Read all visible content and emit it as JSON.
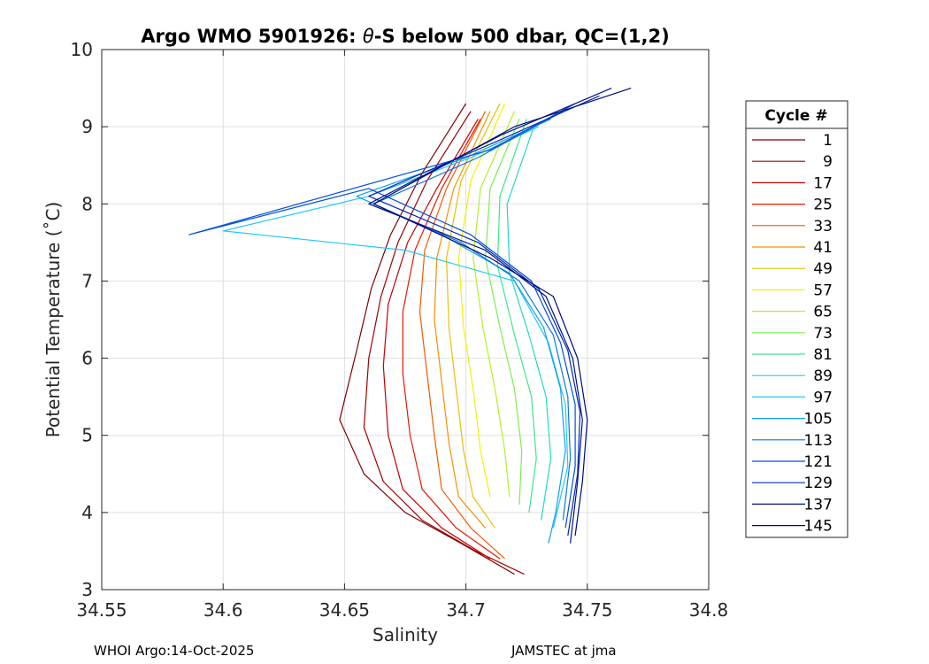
{
  "colors": {
    "background": "#ffffff",
    "axis": "#262626",
    "grid": "#dfdfdf",
    "text": "#000000"
  },
  "chart_data": {
    "type": "line",
    "title_prefix": "Argo WMO 5901926: ",
    "title_symbol": "θ",
    "title_suffix": "-S below 500 dbar,  QC=(1,2)",
    "xlabel": "Salinity",
    "ylabel": "Potential Temperature (˚C)",
    "xlim": [
      34.55,
      34.8
    ],
    "ylim": [
      3,
      10
    ],
    "xticks": [
      34.55,
      34.6,
      34.65,
      34.7,
      34.75,
      34.8
    ],
    "xtick_labels": [
      "34.55",
      "34.6",
      "34.65",
      "34.7",
      "34.75",
      "34.8"
    ],
    "yticks": [
      3,
      4,
      5,
      6,
      7,
      8,
      9,
      10
    ],
    "ytick_labels": [
      "3",
      "4",
      "5",
      "6",
      "7",
      "8",
      "9",
      "10"
    ],
    "grid": true,
    "legend_title": "Cycle #",
    "legend_position": "outside-right",
    "legend": [
      {
        "label": "1",
        "color": "#7f0000"
      },
      {
        "label": "9",
        "color": "#9e0000"
      },
      {
        "label": "17",
        "color": "#c40000"
      },
      {
        "label": "25",
        "color": "#e31a00"
      },
      {
        "label": "33",
        "color": "#f05a00"
      },
      {
        "label": "41",
        "color": "#f59000"
      },
      {
        "label": "49",
        "color": "#e8c000"
      },
      {
        "label": "57",
        "color": "#f2f200"
      },
      {
        "label": "65",
        "color": "#b4f028"
      },
      {
        "label": "73",
        "color": "#78f050"
      },
      {
        "label": "81",
        "color": "#3ce68c"
      },
      {
        "label": "89",
        "color": "#22d9c2"
      },
      {
        "label": "97",
        "color": "#1ec8ff"
      },
      {
        "label": "105",
        "color": "#10a0e6"
      },
      {
        "label": "113",
        "color": "#0a78dc"
      },
      {
        "label": "121",
        "color": "#0050dc"
      },
      {
        "label": "129",
        "color": "#0028b4"
      },
      {
        "label": "137",
        "color": "#00148c"
      },
      {
        "label": "145",
        "color": "#000a78"
      }
    ],
    "series": [
      {
        "name": "1",
        "color": "#7f0000",
        "points": [
          [
            34.7,
            9.3
          ],
          [
            34.682,
            8.4
          ],
          [
            34.669,
            7.6
          ],
          [
            34.661,
            6.9
          ],
          [
            34.655,
            6.1
          ],
          [
            34.648,
            5.2
          ],
          [
            34.658,
            4.5
          ],
          [
            34.675,
            4.0
          ],
          [
            34.698,
            3.6
          ],
          [
            34.72,
            3.2
          ]
        ]
      },
      {
        "name": "9",
        "color": "#9e0000",
        "points": [
          [
            34.702,
            9.2
          ],
          [
            34.684,
            8.3
          ],
          [
            34.672,
            7.5
          ],
          [
            34.665,
            6.8
          ],
          [
            34.66,
            6.0
          ],
          [
            34.658,
            5.1
          ],
          [
            34.666,
            4.4
          ],
          [
            34.682,
            3.9
          ],
          [
            34.704,
            3.5
          ],
          [
            34.724,
            3.2
          ]
        ]
      },
      {
        "name": "17",
        "color": "#c40000",
        "points": [
          [
            34.705,
            9.1
          ],
          [
            34.688,
            8.2
          ],
          [
            34.676,
            7.5
          ],
          [
            34.668,
            6.7
          ],
          [
            34.666,
            5.9
          ],
          [
            34.668,
            5.0
          ],
          [
            34.674,
            4.3
          ],
          [
            34.69,
            3.8
          ],
          [
            34.71,
            3.4
          ]
        ]
      },
      {
        "name": "25",
        "color": "#e31a00",
        "points": [
          [
            34.706,
            9.1
          ],
          [
            34.69,
            8.2
          ],
          [
            34.679,
            7.4
          ],
          [
            34.674,
            6.6
          ],
          [
            34.674,
            5.8
          ],
          [
            34.677,
            5.0
          ],
          [
            34.682,
            4.3
          ],
          [
            34.696,
            3.8
          ],
          [
            34.714,
            3.4
          ]
        ]
      },
      {
        "name": "33",
        "color": "#f05a00",
        "points": [
          [
            34.708,
            9.2
          ],
          [
            34.692,
            8.2
          ],
          [
            34.683,
            7.4
          ],
          [
            34.681,
            6.6
          ],
          [
            34.684,
            5.8
          ],
          [
            34.687,
            5.0
          ],
          [
            34.69,
            4.3
          ],
          [
            34.702,
            3.8
          ],
          [
            34.716,
            3.4
          ]
        ]
      },
      {
        "name": "41",
        "color": "#f59000",
        "points": [
          [
            34.71,
            9.2
          ],
          [
            34.695,
            8.2
          ],
          [
            34.688,
            7.3
          ],
          [
            34.687,
            6.5
          ],
          [
            34.69,
            5.7
          ],
          [
            34.693,
            4.9
          ],
          [
            34.697,
            4.2
          ],
          [
            34.708,
            3.8
          ]
        ]
      },
      {
        "name": "49",
        "color": "#e8c000",
        "points": [
          [
            34.714,
            9.3
          ],
          [
            34.698,
            8.3
          ],
          [
            34.692,
            7.3
          ],
          [
            34.693,
            6.4
          ],
          [
            34.696,
            5.6
          ],
          [
            34.699,
            4.8
          ],
          [
            34.703,
            4.2
          ],
          [
            34.712,
            3.8
          ]
        ]
      },
      {
        "name": "57",
        "color": "#f2f200",
        "points": [
          [
            34.716,
            9.3
          ],
          [
            34.702,
            8.3
          ],
          [
            34.697,
            7.3
          ],
          [
            34.699,
            6.4
          ],
          [
            34.703,
            5.6
          ],
          [
            34.706,
            4.8
          ],
          [
            34.71,
            4.2
          ]
        ]
      },
      {
        "name": "65",
        "color": "#b4f028",
        "points": [
          [
            34.72,
            9.2
          ],
          [
            34.706,
            8.2
          ],
          [
            34.703,
            7.3
          ],
          [
            34.707,
            6.4
          ],
          [
            34.712,
            5.6
          ],
          [
            34.716,
            4.8
          ],
          [
            34.718,
            4.2
          ]
        ]
      },
      {
        "name": "73",
        "color": "#78f050",
        "points": [
          [
            34.722,
            9.1
          ],
          [
            34.71,
            8.2
          ],
          [
            34.708,
            7.3
          ],
          [
            34.714,
            6.4
          ],
          [
            34.72,
            5.6
          ],
          [
            34.723,
            4.8
          ],
          [
            34.722,
            4.1
          ]
        ]
      },
      {
        "name": "81",
        "color": "#3ce68c",
        "points": [
          [
            34.725,
            9.1
          ],
          [
            34.714,
            8.1
          ],
          [
            34.713,
            7.2
          ],
          [
            34.72,
            6.3
          ],
          [
            34.727,
            5.5
          ],
          [
            34.729,
            4.7
          ],
          [
            34.726,
            4.0
          ]
        ]
      },
      {
        "name": "89",
        "color": "#22d9c2",
        "points": [
          [
            34.728,
            9.0
          ],
          [
            34.717,
            8.0
          ],
          [
            34.718,
            7.1
          ],
          [
            34.726,
            6.3
          ],
          [
            34.733,
            5.5
          ],
          [
            34.735,
            4.7
          ],
          [
            34.731,
            3.9
          ]
        ]
      },
      {
        "name": "97",
        "color": "#1ec8ff",
        "points": [
          [
            34.73,
            9.0
          ],
          [
            34.702,
            8.6
          ],
          [
            34.66,
            8.1
          ],
          [
            34.6,
            7.65
          ],
          [
            34.675,
            7.4
          ],
          [
            34.72,
            7.0
          ],
          [
            34.734,
            6.2
          ],
          [
            34.741,
            5.4
          ],
          [
            34.742,
            4.6
          ],
          [
            34.736,
            3.8
          ]
        ]
      },
      {
        "name": "105",
        "color": "#10a0e6",
        "points": [
          [
            34.735,
            9.1
          ],
          [
            34.7,
            8.6
          ],
          [
            34.655,
            8.1
          ],
          [
            34.69,
            7.6
          ],
          [
            34.718,
            7.1
          ],
          [
            34.732,
            6.4
          ],
          [
            34.739,
            5.6
          ],
          [
            34.741,
            4.8
          ],
          [
            34.737,
            4.0
          ],
          [
            34.734,
            3.6
          ]
        ]
      },
      {
        "name": "113",
        "color": "#0a78dc",
        "points": [
          [
            34.74,
            9.2
          ],
          [
            34.705,
            8.6
          ],
          [
            34.662,
            8.0
          ],
          [
            34.698,
            7.5
          ],
          [
            34.722,
            7.0
          ],
          [
            34.736,
            6.3
          ],
          [
            34.742,
            5.5
          ],
          [
            34.743,
            4.7
          ],
          [
            34.74,
            3.9
          ]
        ]
      },
      {
        "name": "121",
        "color": "#0050dc",
        "points": [
          [
            34.745,
            9.3
          ],
          [
            34.71,
            8.7
          ],
          [
            34.586,
            7.6
          ],
          [
            34.66,
            8.2
          ],
          [
            34.702,
            7.6
          ],
          [
            34.727,
            7.0
          ],
          [
            34.739,
            6.2
          ],
          [
            34.745,
            5.4
          ],
          [
            34.745,
            4.6
          ],
          [
            34.741,
            3.8
          ]
        ]
      },
      {
        "name": "129",
        "color": "#0028b4",
        "points": [
          [
            34.755,
            9.4
          ],
          [
            34.712,
            8.8
          ],
          [
            34.66,
            8.1
          ],
          [
            34.705,
            7.5
          ],
          [
            34.73,
            6.9
          ],
          [
            34.742,
            6.1
          ],
          [
            34.747,
            5.3
          ],
          [
            34.746,
            4.5
          ],
          [
            34.742,
            3.7
          ]
        ]
      },
      {
        "name": "137",
        "color": "#00148c",
        "points": [
          [
            34.76,
            9.5
          ],
          [
            34.715,
            8.9
          ],
          [
            34.66,
            8.0
          ],
          [
            34.708,
            7.4
          ],
          [
            34.733,
            6.8
          ],
          [
            34.744,
            6.0
          ],
          [
            34.748,
            5.2
          ],
          [
            34.746,
            4.4
          ],
          [
            34.743,
            3.6
          ]
        ]
      },
      {
        "name": "145",
        "color": "#000a78",
        "points": [
          [
            34.768,
            9.5
          ],
          [
            34.72,
            9.0
          ],
          [
            34.662,
            8.0
          ],
          [
            34.71,
            7.3
          ],
          [
            34.736,
            6.8
          ],
          [
            34.746,
            6.0
          ],
          [
            34.75,
            5.2
          ],
          [
            34.748,
            4.4
          ],
          [
            34.745,
            3.7
          ]
        ]
      }
    ]
  },
  "footer": {
    "left": "WHOI Argo:14-Oct-2025",
    "right": "JAMSTEC at jma"
  }
}
